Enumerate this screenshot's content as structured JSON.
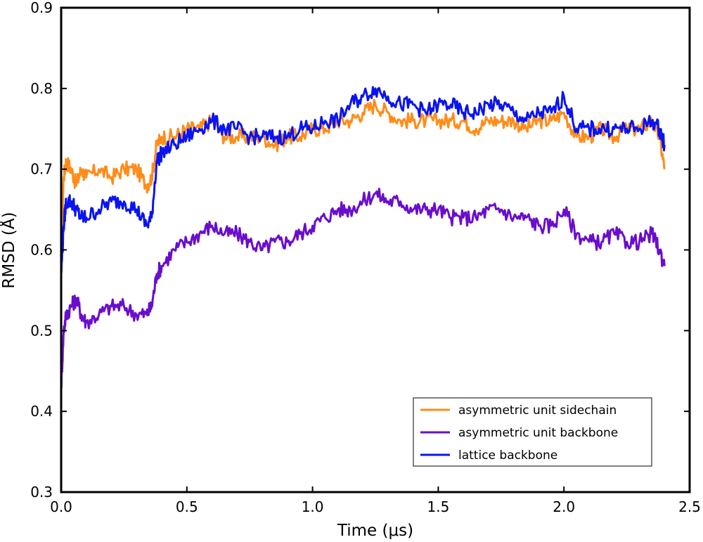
{
  "chart_data": {
    "type": "line",
    "xlabel": "Time (μs)",
    "ylabel": "RMSD (Å)",
    "xlim": [
      0.0,
      2.5
    ],
    "ylim": [
      0.3,
      0.9
    ],
    "xticks": [
      0.0,
      0.5,
      1.0,
      1.5,
      2.0,
      2.5
    ],
    "yticks": [
      0.3,
      0.4,
      0.5,
      0.6,
      0.7,
      0.8,
      0.9
    ],
    "xtick_labels": [
      "0.0",
      "0.5",
      "1.0",
      "1.5",
      "2.0",
      "2.5"
    ],
    "ytick_labels": [
      "0.3",
      "0.4",
      "0.5",
      "0.6",
      "0.7",
      "0.8",
      "0.9"
    ],
    "grid": false,
    "legend_position": "lower-right",
    "series": [
      {
        "name": "asymmetric unit sidechain",
        "color": "#ff8c1a",
        "x": [
          0.0,
          0.01,
          0.02,
          0.04,
          0.06,
          0.08,
          0.1,
          0.15,
          0.2,
          0.25,
          0.3,
          0.34,
          0.36,
          0.38,
          0.4,
          0.45,
          0.5,
          0.55,
          0.6,
          0.65,
          0.7,
          0.75,
          0.8,
          0.85,
          0.9,
          0.95,
          1.0,
          1.05,
          1.1,
          1.15,
          1.2,
          1.25,
          1.3,
          1.35,
          1.4,
          1.45,
          1.5,
          1.55,
          1.6,
          1.65,
          1.7,
          1.75,
          1.8,
          1.85,
          1.9,
          1.95,
          2.0,
          2.05,
          2.1,
          2.15,
          2.2,
          2.25,
          2.3,
          2.35,
          2.38,
          2.4
        ],
        "y": [
          0.6,
          0.69,
          0.71,
          0.7,
          0.68,
          0.7,
          0.69,
          0.7,
          0.69,
          0.7,
          0.7,
          0.68,
          0.69,
          0.73,
          0.74,
          0.74,
          0.75,
          0.75,
          0.76,
          0.74,
          0.74,
          0.74,
          0.74,
          0.73,
          0.74,
          0.74,
          0.75,
          0.75,
          0.76,
          0.76,
          0.77,
          0.78,
          0.77,
          0.76,
          0.76,
          0.76,
          0.76,
          0.76,
          0.76,
          0.75,
          0.76,
          0.76,
          0.76,
          0.75,
          0.76,
          0.76,
          0.77,
          0.74,
          0.74,
          0.75,
          0.74,
          0.75,
          0.75,
          0.76,
          0.74,
          0.7
        ]
      },
      {
        "name": "asymmetric unit backbone",
        "color": "#6a0dcc",
        "x": [
          0.0,
          0.01,
          0.02,
          0.04,
          0.06,
          0.08,
          0.1,
          0.15,
          0.2,
          0.25,
          0.3,
          0.34,
          0.36,
          0.38,
          0.4,
          0.45,
          0.5,
          0.55,
          0.6,
          0.65,
          0.7,
          0.75,
          0.8,
          0.85,
          0.9,
          0.95,
          1.0,
          1.05,
          1.1,
          1.15,
          1.2,
          1.25,
          1.3,
          1.35,
          1.4,
          1.45,
          1.5,
          1.55,
          1.6,
          1.65,
          1.7,
          1.75,
          1.8,
          1.85,
          1.9,
          1.95,
          2.0,
          2.05,
          2.1,
          2.15,
          2.2,
          2.25,
          2.3,
          2.35,
          2.38,
          2.4
        ],
        "y": [
          0.43,
          0.5,
          0.52,
          0.53,
          0.54,
          0.52,
          0.51,
          0.52,
          0.53,
          0.53,
          0.52,
          0.52,
          0.53,
          0.57,
          0.58,
          0.6,
          0.61,
          0.62,
          0.63,
          0.62,
          0.62,
          0.61,
          0.6,
          0.61,
          0.61,
          0.62,
          0.63,
          0.64,
          0.65,
          0.65,
          0.66,
          0.67,
          0.66,
          0.66,
          0.65,
          0.65,
          0.65,
          0.64,
          0.64,
          0.64,
          0.65,
          0.65,
          0.64,
          0.64,
          0.63,
          0.63,
          0.65,
          0.62,
          0.61,
          0.61,
          0.62,
          0.61,
          0.61,
          0.62,
          0.6,
          0.58
        ]
      },
      {
        "name": "lattice backbone",
        "color": "#0a14f0",
        "x": [
          0.0,
          0.01,
          0.02,
          0.04,
          0.06,
          0.08,
          0.1,
          0.15,
          0.2,
          0.25,
          0.3,
          0.34,
          0.36,
          0.38,
          0.4,
          0.45,
          0.5,
          0.55,
          0.6,
          0.65,
          0.7,
          0.75,
          0.8,
          0.85,
          0.9,
          0.95,
          1.0,
          1.05,
          1.1,
          1.15,
          1.2,
          1.25,
          1.3,
          1.35,
          1.4,
          1.45,
          1.5,
          1.55,
          1.6,
          1.65,
          1.7,
          1.75,
          1.8,
          1.85,
          1.9,
          1.95,
          2.0,
          2.05,
          2.1,
          2.15,
          2.2,
          2.25,
          2.3,
          2.35,
          2.38,
          2.4
        ],
        "y": [
          0.57,
          0.63,
          0.66,
          0.66,
          0.65,
          0.64,
          0.64,
          0.65,
          0.66,
          0.66,
          0.65,
          0.63,
          0.64,
          0.71,
          0.72,
          0.73,
          0.74,
          0.75,
          0.76,
          0.75,
          0.75,
          0.74,
          0.74,
          0.74,
          0.74,
          0.75,
          0.75,
          0.76,
          0.76,
          0.78,
          0.79,
          0.8,
          0.79,
          0.78,
          0.78,
          0.77,
          0.78,
          0.78,
          0.77,
          0.77,
          0.78,
          0.78,
          0.77,
          0.76,
          0.77,
          0.77,
          0.79,
          0.75,
          0.75,
          0.75,
          0.75,
          0.75,
          0.75,
          0.76,
          0.75,
          0.73
        ]
      }
    ]
  }
}
